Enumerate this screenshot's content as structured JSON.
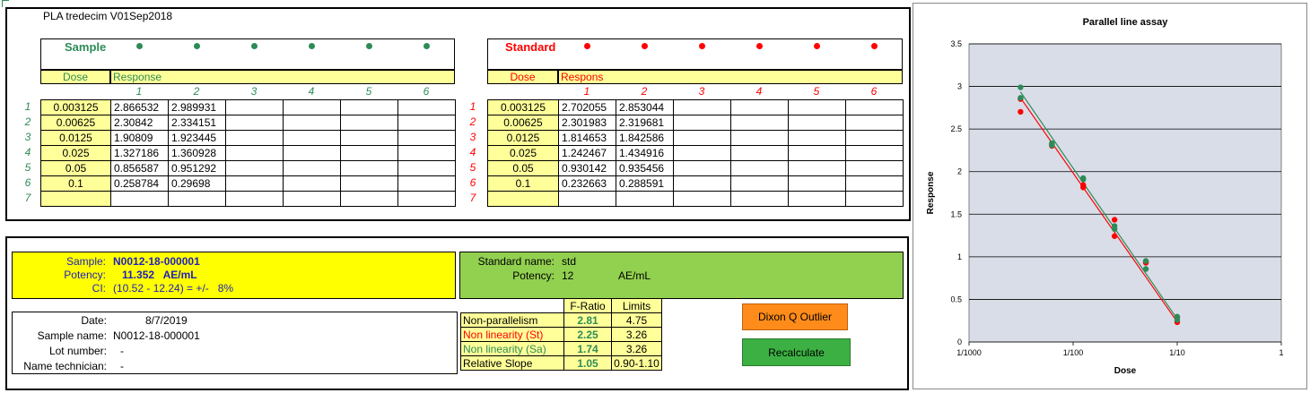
{
  "title": "PLA tredecim V01Sep2018",
  "sample_block": {
    "label": "Sample",
    "dose_header": "Dose",
    "response_header": "Response",
    "col_numbers": [
      "1",
      "2",
      "3",
      "4",
      "5",
      "6"
    ],
    "row_numbers": [
      "1",
      "2",
      "3",
      "4",
      "5",
      "6",
      "7"
    ],
    "rows": [
      {
        "dose": "0.003125",
        "r1": "2.866532",
        "r2": "2.989931"
      },
      {
        "dose": "0.00625",
        "r1": "2.30842",
        "r2": "2.334151"
      },
      {
        "dose": "0.0125",
        "r1": "1.90809",
        "r2": "1.923445"
      },
      {
        "dose": "0.025",
        "r1": "1.327186",
        "r2": "1.360928"
      },
      {
        "dose": "0.05",
        "r1": "0.856587",
        "r2": "0.951292"
      },
      {
        "dose": "0.1",
        "r1": "0.258784",
        "r2": "0.29698"
      },
      {
        "dose": "",
        "r1": "",
        "r2": ""
      }
    ]
  },
  "standard_block": {
    "label": "Standard",
    "dose_header": "Dose",
    "response_header": "Respons",
    "col_numbers": [
      "1",
      "2",
      "3",
      "4",
      "5",
      "6"
    ],
    "row_numbers": [
      "1",
      "2",
      "3",
      "4",
      "5",
      "6",
      "7"
    ],
    "rows": [
      {
        "dose": "0.003125",
        "r1": "2.702055",
        "r2": "2.853044"
      },
      {
        "dose": "0.00625",
        "r1": "2.301983",
        "r2": "2.319681"
      },
      {
        "dose": "0.0125",
        "r1": "1.814653",
        "r2": "1.842586"
      },
      {
        "dose": "0.025",
        "r1": "1.242467",
        "r2": "1.434916"
      },
      {
        "dose": "0.05",
        "r1": "0.930142",
        "r2": "0.935456"
      },
      {
        "dose": "0.1",
        "r1": "0.232663",
        "r2": "0.288591"
      },
      {
        "dose": "",
        "r1": "",
        "r2": ""
      }
    ]
  },
  "result_sample": {
    "sample_label": "Sample:",
    "sample_value": "N0012-18-000001",
    "potency_label": "Potency:",
    "potency_value": "11.352   AE/mL",
    "ci_label": "CI:",
    "ci_value": "(10.52 - 12.24) = +/-   8%"
  },
  "result_standard": {
    "name_label": "Standard name:",
    "name_value": "std",
    "potency_label": "Potency:",
    "potency_value": "12",
    "potency_unit": "AE/mL"
  },
  "info": {
    "date_label": "Date:",
    "date_value": "8/7/2019",
    "sample_name_label": "Sample name:",
    "sample_name_value": "N0012-18-000001",
    "lot_label": "Lot number:",
    "lot_value": "-",
    "tech_label": "Name technician:",
    "tech_value": "-"
  },
  "ftable": {
    "h_fratio": "F-Ratio",
    "h_limits": "Limits",
    "rows": [
      {
        "label": "Non-parallelism",
        "f": "2.81",
        "lim": "4.75"
      },
      {
        "label": "Non linearity (St)",
        "f": "2.25",
        "lim": "3.26"
      },
      {
        "label": "Non linearity (Sa)",
        "f": "1.74",
        "lim": "3.26"
      },
      {
        "label": "Relative Slope",
        "f": "1.05",
        "lim": "0.90-1.10"
      }
    ]
  },
  "buttons": {
    "dixon": "Dixon Q Outlier",
    "recalc": "Recalculate"
  },
  "colors": {
    "sample": "#2e8b57",
    "standard": "#ff0000",
    "dose_fill": "#ffff99",
    "yellow_panel": "#ffff00",
    "green_panel": "#92d050",
    "dixon_button": "#ff8c1a",
    "recalc_button": "#3cb043",
    "plot_area": "#d9dde8"
  },
  "chart_data": {
    "type": "scatter",
    "title": "Parallel line assay",
    "xlabel": "Dose",
    "ylabel": "Response",
    "x_scale": "log",
    "xlim": [
      0.001,
      1
    ],
    "ylim": [
      0,
      3.5
    ],
    "x_ticks": [
      "1/1000",
      "1/100",
      "1/10",
      "1"
    ],
    "y_ticks": [
      "0",
      "0.5",
      "1",
      "1.5",
      "2",
      "2.5",
      "3",
      "3.5"
    ],
    "grid": "horizontal",
    "series": [
      {
        "color": "#ff0000",
        "x": [
          0.003125,
          0.003125,
          0.00625,
          0.00625,
          0.0125,
          0.0125,
          0.025,
          0.025,
          0.05,
          0.05,
          0.1,
          0.1
        ],
        "y": [
          2.702055,
          2.853044,
          2.301983,
          2.319681,
          1.814653,
          1.842586,
          1.242467,
          1.434916,
          0.930142,
          0.935456,
          0.232663,
          0.288591
        ],
        "fit": [
          [
            0.003125,
            2.865
          ],
          [
            0.1,
            0.236
          ]
        ]
      },
      {
        "color": "#2e8b57",
        "x": [
          0.003125,
          0.003125,
          0.00625,
          0.00625,
          0.0125,
          0.0125,
          0.025,
          0.025,
          0.05,
          0.05,
          0.1,
          0.1
        ],
        "y": [
          2.866532,
          2.989931,
          2.30842,
          2.334151,
          1.90809,
          1.923445,
          1.327186,
          1.360928,
          0.856587,
          0.951292,
          0.258784,
          0.29698
        ],
        "fit": [
          [
            0.003125,
            2.935
          ],
          [
            0.1,
            0.27
          ]
        ]
      }
    ]
  }
}
